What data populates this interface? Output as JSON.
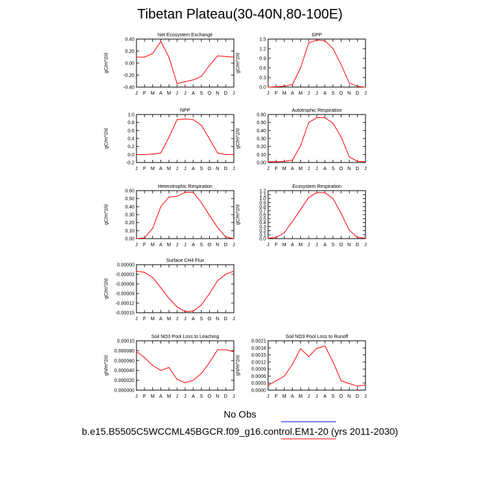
{
  "title": "Tibetan Plateau(30-40N,80-100E)",
  "legend": {
    "obs_label": "No Obs",
    "model_label": "b.e15.B5505C5WCCML45BGCR.f09_g16.control.EM1-20 (yrs 2011-2030)",
    "model_color": "#ff0000",
    "obs_color": "#0000ff"
  },
  "months": [
    "J",
    "F",
    "M",
    "A",
    "M",
    "J",
    "J",
    "A",
    "S",
    "O",
    "N",
    "D",
    "J"
  ],
  "chart_data": [
    {
      "type": "line",
      "title": "Net Ecosystem Exchange",
      "ylabel": "gC/m^2/d",
      "ylim": [
        -0.4,
        0.4
      ],
      "yticks": [
        "-0.40",
        "-0.20",
        "0.00",
        "0.20",
        "0.40"
      ],
      "ytick_values": [
        -0.4,
        -0.2,
        0.0,
        0.2,
        0.4
      ],
      "values": [
        0.1,
        0.1,
        0.16,
        0.36,
        0.1,
        -0.34,
        -0.31,
        -0.28,
        -0.22,
        -0.04,
        0.12,
        0.11,
        0.1
      ]
    },
    {
      "type": "line",
      "title": "GPP",
      "ylabel": "gC/m^2/d",
      "ylim": [
        0,
        1.5
      ],
      "yticks": [
        "0.0",
        "0.3",
        "0.6",
        "0.9",
        "1.2",
        "1.5"
      ],
      "ytick_values": [
        0,
        0.3,
        0.6,
        0.9,
        1.2,
        1.5
      ],
      "values": [
        0.0,
        0.01,
        0.03,
        0.08,
        0.6,
        1.38,
        1.47,
        1.45,
        1.2,
        0.7,
        0.13,
        0.02,
        0.0
      ]
    },
    {
      "type": "line",
      "title": "NPP",
      "ylabel": "gC/m^2/d",
      "ylim": [
        -0.2,
        1.0
      ],
      "yticks": [
        "-0.2",
        "0.0",
        "0.2",
        "0.4",
        "0.6",
        "0.8",
        "1.0"
      ],
      "ytick_values": [
        -0.2,
        0.0,
        0.2,
        0.4,
        0.6,
        0.8,
        1.0
      ],
      "values": [
        0.0,
        0.0,
        0.01,
        0.04,
        0.43,
        0.87,
        0.89,
        0.87,
        0.73,
        0.39,
        0.04,
        0.0,
        0.0
      ]
    },
    {
      "type": "line",
      "title": "Autotrophic Respiration",
      "ylabel": "gC/m^2/d",
      "ylim": [
        0,
        0.6
      ],
      "yticks": [
        "0.00",
        "0.10",
        "0.20",
        "0.30",
        "0.40",
        "0.50",
        "0.60"
      ],
      "ytick_values": [
        0,
        0.1,
        0.2,
        0.3,
        0.4,
        0.5,
        0.6
      ],
      "values": [
        0.01,
        0.01,
        0.015,
        0.03,
        0.21,
        0.5,
        0.56,
        0.56,
        0.49,
        0.32,
        0.07,
        0.015,
        0.01
      ]
    },
    {
      "type": "line",
      "title": "Heterotrophic Respiration",
      "ylabel": "gC/m^2/d",
      "ylim": [
        0,
        0.6
      ],
      "yticks": [
        "0.00",
        "0.10",
        "0.20",
        "0.30",
        "0.40",
        "0.50",
        "0.60"
      ],
      "ytick_values": [
        0,
        0.1,
        0.2,
        0.3,
        0.4,
        0.5,
        0.6
      ],
      "values": [
        0.0,
        0.01,
        0.13,
        0.4,
        0.52,
        0.53,
        0.58,
        0.58,
        0.45,
        0.29,
        0.14,
        0.02,
        0.0
      ]
    },
    {
      "type": "line",
      "title": "Ecosystem Respiration",
      "ylabel": "gC/m^2/d",
      "ylim": [
        0,
        1.2
      ],
      "yticks": [
        "0.0",
        "0.1",
        "0.2",
        "0.3",
        "0.4",
        "0.5",
        "0.6",
        "0.7",
        "0.8",
        "0.9",
        "1.0",
        "1.1",
        "1.2"
      ],
      "ytick_values": [
        0,
        0.1,
        0.2,
        0.3,
        0.4,
        0.5,
        0.6,
        0.7,
        0.8,
        0.9,
        1.0,
        1.1,
        1.2
      ],
      "values": [
        0.01,
        0.03,
        0.15,
        0.43,
        0.73,
        1.03,
        1.15,
        1.15,
        1.0,
        0.63,
        0.21,
        0.03,
        0.01
      ]
    },
    {
      "type": "line",
      "title": "Surface CH4 Flux",
      "ylabel": "gC/m^2/d",
      "ylim": [
        -0.00015,
        0.0
      ],
      "yticks": [
        "-0.00015",
        "-0.00012",
        "-0.00009",
        "-0.00006",
        "-0.00003",
        "0.00000"
      ],
      "ytick_values": [
        -0.00015,
        -0.00012,
        -9e-05,
        -6e-05,
        -3e-05,
        0.0
      ],
      "values": [
        -2e-05,
        -2.4e-05,
        -4e-05,
        -7.2e-05,
        -0.000105,
        -0.000132,
        -0.000147,
        -0.000145,
        -0.000126,
        -9e-05,
        -5e-05,
        -3e-05,
        -2e-05
      ]
    },
    {
      "type": "line",
      "title": "Soil NO3 Pool Loss to Leaching",
      "ylabel": "gN/m^2/d",
      "ylim": [
        0.0,
        0.0001
      ],
      "yticks": [
        "0.000000",
        "0.000020",
        "0.000040",
        "0.000060",
        "0.000080",
        "0.00010"
      ],
      "ytick_values": [
        0.0,
        2e-05,
        4e-05,
        6e-05,
        8e-05,
        0.0001
      ],
      "values": [
        7.8e-05,
        6.6e-05,
        5e-05,
        4e-05,
        4.6e-05,
        2.2e-05,
        1.5e-05,
        2e-05,
        3.4e-05,
        5.6e-05,
        8.2e-05,
        8.2e-05,
        7.8e-05
      ]
    },
    {
      "type": "line",
      "title": "Soil NO3 Pool Loss to Runoff",
      "ylabel": "gN/m^2/d",
      "ylim": [
        0.0,
        0.0021
      ],
      "yticks": [
        "0.0000",
        "0.0003",
        "0.0006",
        "0.0009",
        "0.0012",
        "0.0015",
        "0.0018",
        "0.0021"
      ],
      "ytick_values": [
        0.0,
        0.0003,
        0.0006,
        0.0009,
        0.0012,
        0.0015,
        0.0018,
        0.0021
      ],
      "values": [
        0.0002,
        0.0004,
        0.0006,
        0.0011,
        0.00177,
        0.00143,
        0.00178,
        0.00188,
        0.0012,
        0.0004,
        0.00028,
        0.00017,
        0.00022
      ]
    }
  ]
}
